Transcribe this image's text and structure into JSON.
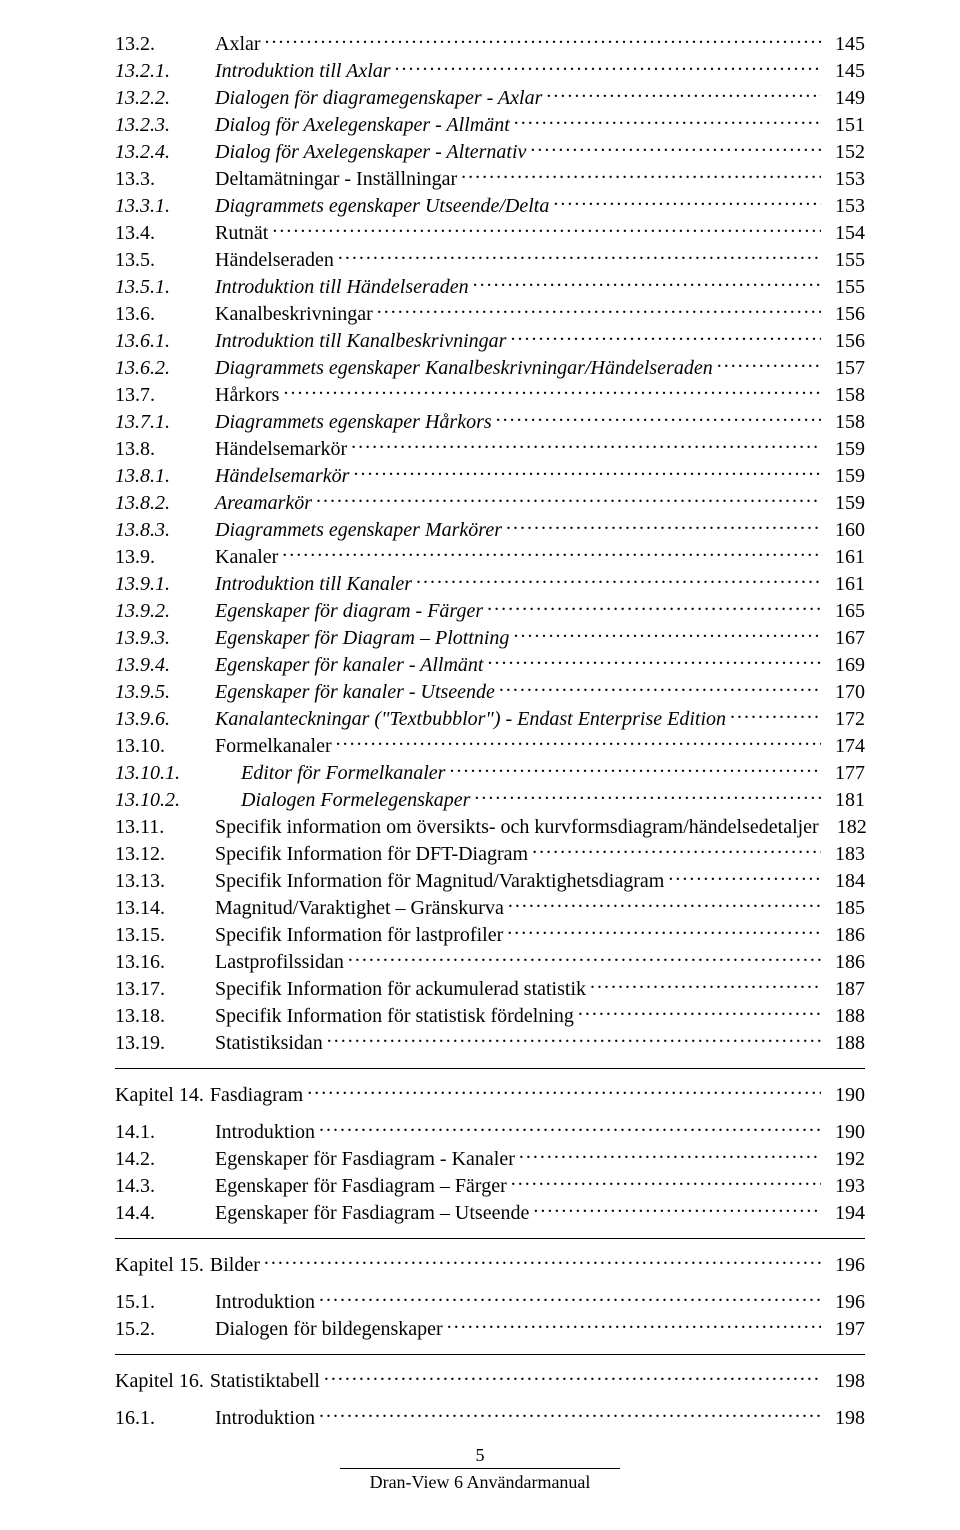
{
  "footer": {
    "page_number": "5",
    "doc_title": "Dran-View 6 Användarmanual"
  },
  "sections": [
    {
      "border": false,
      "entries": [
        {
          "num": "13.2.",
          "title": "Axlar",
          "page": "145",
          "italic": false
        },
        {
          "num": "13.2.1.",
          "title": "Introduktion till Axlar",
          "page": "145",
          "italic": true
        },
        {
          "num": "13.2.2.",
          "title": "Dialogen för diagramegenskaper - Axlar",
          "page": "149",
          "italic": true
        },
        {
          "num": "13.2.3.",
          "title": "Dialog för Axelegenskaper - Allmänt",
          "page": "151",
          "italic": true
        },
        {
          "num": "13.2.4.",
          "title": "Dialog för Axelegenskaper - Alternativ",
          "page": "152",
          "italic": true
        },
        {
          "num": "13.3.",
          "title": "Deltamätningar - Inställningar",
          "page": "153",
          "italic": false
        },
        {
          "num": "13.3.1.",
          "title": "Diagrammets egenskaper Utseende/Delta",
          "page": "153",
          "italic": true
        },
        {
          "num": "13.4.",
          "title": "Rutnät",
          "page": "154",
          "italic": false
        },
        {
          "num": "13.5.",
          "title": "Händelseraden",
          "page": "155",
          "italic": false
        },
        {
          "num": "13.5.1.",
          "title": "Introduktion till Händelseraden",
          "page": "155",
          "italic": true
        },
        {
          "num": "13.6.",
          "title": "Kanalbeskrivningar",
          "page": "156",
          "italic": false
        },
        {
          "num": "13.6.1.",
          "title": "Introduktion till Kanalbeskrivningar",
          "page": "156",
          "italic": true
        },
        {
          "num": "13.6.2.",
          "title": "Diagrammets egenskaper Kanalbeskrivningar/Händelseraden",
          "page": "157",
          "italic": true
        },
        {
          "num": "13.7.",
          "title": "Hårkors",
          "page": "158",
          "italic": false
        },
        {
          "num": "13.7.1.",
          "title": "Diagrammets egenskaper Hårkors",
          "page": "158",
          "italic": true
        },
        {
          "num": "13.8.",
          "title": "Händelsemarkör",
          "page": "159",
          "italic": false
        },
        {
          "num": "13.8.1.",
          "title": "Händelsemarkör",
          "page": "159",
          "italic": true
        },
        {
          "num": "13.8.2.",
          "title": "Areamarkör",
          "page": "159",
          "italic": true
        },
        {
          "num": "13.8.3.",
          "title": "Diagrammets egenskaper Markörer",
          "page": "160",
          "italic": true
        },
        {
          "num": "13.9.",
          "title": "Kanaler",
          "page": "161",
          "italic": false
        },
        {
          "num": "13.9.1.",
          "title": "Introduktion till Kanaler",
          "page": "161",
          "italic": true
        },
        {
          "num": "13.9.2.",
          "title": "Egenskaper för diagram - Färger",
          "page": "165",
          "italic": true
        },
        {
          "num": "13.9.3.",
          "title": "Egenskaper för Diagram – Plottning",
          "page": "167",
          "italic": true
        },
        {
          "num": "13.9.4.",
          "title": "Egenskaper för kanaler - Allmänt",
          "page": "169",
          "italic": true
        },
        {
          "num": "13.9.5.",
          "title": "Egenskaper för kanaler - Utseende",
          "page": "170",
          "italic": true
        },
        {
          "num": "13.9.6.",
          "title": "Kanalanteckningar (\"Textbubblor\") - Endast Enterprise Edition",
          "page": "172",
          "italic": true
        },
        {
          "num": "13.10.",
          "title": "Formelkanaler",
          "page": "174",
          "italic": false
        },
        {
          "num": "13.10.1.",
          "title": "Editor för Formelkanaler",
          "page": "177",
          "italic": true,
          "indentExtra": true
        },
        {
          "num": "13.10.2.",
          "title": "Dialogen Formelegenskaper",
          "page": "181",
          "italic": true,
          "indentExtra": true
        },
        {
          "num": "13.11.",
          "title": "Specifik information om översikts- och kurvformsdiagram/händelsedetaljer",
          "page": "182",
          "italic": false
        },
        {
          "num": "13.12.",
          "title": "Specifik Information för DFT-Diagram",
          "page": "183",
          "italic": false
        },
        {
          "num": "13.13.",
          "title": "Specifik Information för Magnitud/Varaktighetsdiagram",
          "page": "184",
          "italic": false
        },
        {
          "num": "13.14.",
          "title": "Magnitud/Varaktighet – Gränskurva",
          "page": "185",
          "italic": false
        },
        {
          "num": "13.15.",
          "title": "Specifik Information för lastprofiler",
          "page": "186",
          "italic": false
        },
        {
          "num": "13.16.",
          "title": "Lastprofilssidan",
          "page": "186",
          "italic": false
        },
        {
          "num": "13.17.",
          "title": "Specifik Information för ackumulerad statistik",
          "page": "187",
          "italic": false
        },
        {
          "num": "13.18.",
          "title": "Specifik Information för statistisk fördelning",
          "page": "188",
          "italic": false
        },
        {
          "num": "13.19.",
          "title": "Statistiksidan",
          "page": "188",
          "italic": false
        }
      ]
    },
    {
      "border": true,
      "heading": {
        "num": "Kapitel 14.",
        "title": "Fasdiagram",
        "page": "190"
      },
      "entries": [
        {
          "num": "14.1.",
          "title": "Introduktion",
          "page": "190",
          "italic": false
        },
        {
          "num": "14.2.",
          "title": "Egenskaper för Fasdiagram - Kanaler",
          "page": "192",
          "italic": false
        },
        {
          "num": "14.3.",
          "title": "Egenskaper för Fasdiagram – Färger",
          "page": "193",
          "italic": false
        },
        {
          "num": "14.4.",
          "title": "Egenskaper för Fasdiagram – Utseende",
          "page": "194",
          "italic": false
        }
      ]
    },
    {
      "border": true,
      "heading": {
        "num": "Kapitel 15.",
        "title": "Bilder",
        "page": "196"
      },
      "entries": [
        {
          "num": "15.1.",
          "title": "Introduktion",
          "page": "196",
          "italic": false
        },
        {
          "num": "15.2.",
          "title": "Dialogen för bildegenskaper",
          "page": "197",
          "italic": false
        }
      ]
    },
    {
      "border": true,
      "heading": {
        "num": "Kapitel 16.",
        "title": "Statistiktabell",
        "page": "198"
      },
      "entries": [
        {
          "num": "16.1.",
          "title": "Introduktion",
          "page": "198",
          "italic": false
        }
      ]
    }
  ]
}
